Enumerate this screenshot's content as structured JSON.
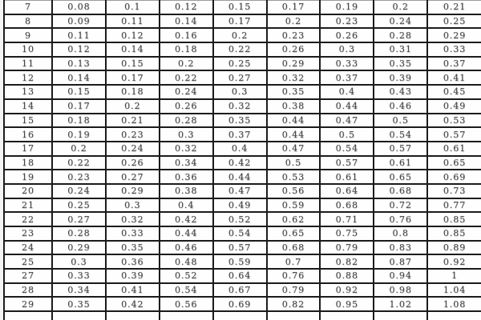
{
  "table": {
    "rows": [
      [
        "7",
        "0.08",
        "0.1",
        "0.12",
        "0.15",
        "0.17",
        "0.19",
        "0.2",
        "0.21"
      ],
      [
        "8",
        "0.09",
        "0.11",
        "0.14",
        "0.17",
        "0.2",
        "0.23",
        "0.24",
        "0.25"
      ],
      [
        "9",
        "0.11",
        "0.12",
        "0.16",
        "0.2",
        "0.23",
        "0.26",
        "0.28",
        "0.29"
      ],
      [
        "10",
        "0.12",
        "0.14",
        "0.18",
        "0.22",
        "0.26",
        "0.3",
        "0.31",
        "0.33"
      ],
      [
        "11",
        "0.13",
        "0.15",
        "0.2",
        "0.25",
        "0.29",
        "0.33",
        "0.35",
        "0.37"
      ],
      [
        "12",
        "0.14",
        "0.17",
        "0.22",
        "0.27",
        "0.32",
        "0.37",
        "0.39",
        "0.41"
      ],
      [
        "13",
        "0.15",
        "0.18",
        "0.24",
        "0.3",
        "0.35",
        "0.4",
        "0.43",
        "0.45"
      ],
      [
        "14",
        "0.17",
        "0.2",
        "0.26",
        "0.32",
        "0.38",
        "0.44",
        "0.46",
        "0.49"
      ],
      [
        "15",
        "0.18",
        "0.21",
        "0.28",
        "0.35",
        "0.44",
        "0.47",
        "0.5",
        "0.53"
      ],
      [
        "16",
        "0.19",
        "0.23",
        "0.3",
        "0.37",
        "0.44",
        "0.5",
        "0.54",
        "0.57"
      ],
      [
        "17",
        "0.2",
        "0.24",
        "0.32",
        "0.4",
        "0.47",
        "0.54",
        "0.57",
        "0.61"
      ],
      [
        "18",
        "0.22",
        "0.26",
        "0.34",
        "0.42",
        "0.5",
        "0.57",
        "0.61",
        "0.65"
      ],
      [
        "19",
        "0.23",
        "0.27",
        "0.36",
        "0.44",
        "0.53",
        "0.61",
        "0.65",
        "0.69"
      ],
      [
        "20",
        "0.24",
        "0.29",
        "0.38",
        "0.47",
        "0.56",
        "0.64",
        "0.68",
        "0.73"
      ],
      [
        "21",
        "0.25",
        "0.3",
        "0.4",
        "0.49",
        "0.59",
        "0.68",
        "0.72",
        "0.77"
      ],
      [
        "22",
        "0.27",
        "0.32",
        "0.42",
        "0.52",
        "0.62",
        "0.71",
        "0.76",
        "0.85"
      ],
      [
        "23",
        "0.28",
        "0.33",
        "0.44",
        "0.54",
        "0.65",
        "0.75",
        "0.8",
        "0.85"
      ],
      [
        "24",
        "0.29",
        "0.35",
        "0.46",
        "0.57",
        "0.68",
        "0.79",
        "0.83",
        "0.89"
      ],
      [
        "25",
        "0.3",
        "0.36",
        "0.48",
        "0.59",
        "0.7",
        "0.82",
        "0.87",
        "0.92"
      ],
      [
        "27",
        "0.33",
        "0.39",
        "0.52",
        "0.64",
        "0.76",
        "0.88",
        "0.94",
        "1"
      ],
      [
        "28",
        "0.34",
        "0.41",
        "0.54",
        "0.67",
        "0.79",
        "0.92",
        "0.98",
        "1.04"
      ],
      [
        "29",
        "0.35",
        "0.42",
        "0.56",
        "0.69",
        "0.82",
        "0.95",
        "1.02",
        "1.08"
      ]
    ],
    "columns_count": 9,
    "partial_bottom_row": true
  },
  "colors": {
    "border": "#1b1b1b",
    "text": "#474747",
    "background": "#fdfdfd"
  }
}
